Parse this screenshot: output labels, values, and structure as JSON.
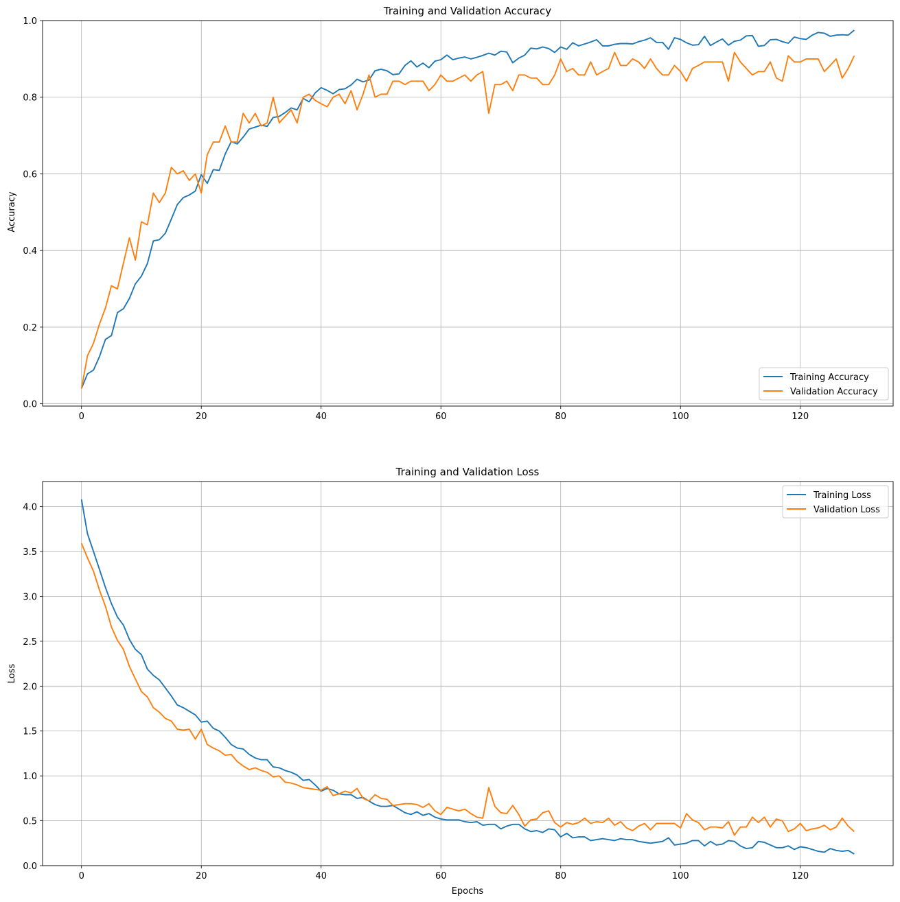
{
  "chart_data": [
    {
      "type": "line",
      "title": "Training and Validation Accuracy",
      "xlabel": "",
      "ylabel": "Accuracy",
      "xlim": [
        -6.5,
        135.5
      ],
      "ylim": [
        -0.006,
        1.0
      ],
      "xticks": [
        0,
        20,
        40,
        60,
        80,
        100,
        120
      ],
      "xtick_labels": [
        "0",
        "20",
        "40",
        "60",
        "80",
        "100",
        "120"
      ],
      "yticks": [
        0.0,
        0.2,
        0.4,
        0.6,
        0.8,
        1.0
      ],
      "ytick_labels": [
        "0.0",
        "0.2",
        "0.4",
        "0.6",
        "0.8",
        "1.0"
      ],
      "grid": true,
      "legend": "lower-right",
      "series": [
        {
          "name": "Training Accuracy",
          "color": "#1f77b4",
          "values": [
            0.04,
            0.078,
            0.088,
            0.123,
            0.168,
            0.178,
            0.238,
            0.248,
            0.275,
            0.313,
            0.333,
            0.366,
            0.425,
            0.428,
            0.445,
            0.482,
            0.52,
            0.538,
            0.545,
            0.555,
            0.598,
            0.575,
            0.611,
            0.609,
            0.652,
            0.684,
            0.678,
            0.696,
            0.717,
            0.722,
            0.727,
            0.724,
            0.747,
            0.75,
            0.76,
            0.772,
            0.767,
            0.797,
            0.788,
            0.811,
            0.825,
            0.818,
            0.809,
            0.82,
            0.822,
            0.832,
            0.847,
            0.84,
            0.845,
            0.869,
            0.873,
            0.869,
            0.859,
            0.861,
            0.883,
            0.895,
            0.879,
            0.889,
            0.877,
            0.894,
            0.898,
            0.91,
            0.898,
            0.902,
            0.905,
            0.9,
            0.904,
            0.909,
            0.915,
            0.91,
            0.92,
            0.918,
            0.89,
            0.902,
            0.91,
            0.928,
            0.926,
            0.931,
            0.927,
            0.917,
            0.931,
            0.925,
            0.942,
            0.934,
            0.939,
            0.944,
            0.95,
            0.934,
            0.934,
            0.938,
            0.94,
            0.94,
            0.939,
            0.945,
            0.949,
            0.955,
            0.943,
            0.943,
            0.925,
            0.955,
            0.951,
            0.942,
            0.936,
            0.937,
            0.959,
            0.935,
            0.944,
            0.952,
            0.936,
            0.946,
            0.949,
            0.96,
            0.961,
            0.933,
            0.935,
            0.95,
            0.951,
            0.945,
            0.941,
            0.957,
            0.953,
            0.951,
            0.962,
            0.969,
            0.967,
            0.959,
            0.962,
            0.963,
            0.962,
            0.975
          ]
        },
        {
          "name": "Validation Accuracy",
          "color": "#ff7f0e",
          "values": [
            0.04,
            0.125,
            0.158,
            0.208,
            0.25,
            0.308,
            0.3,
            0.367,
            0.433,
            0.375,
            0.475,
            0.467,
            0.55,
            0.525,
            0.55,
            0.617,
            0.6,
            0.608,
            0.583,
            0.6,
            0.55,
            0.65,
            0.683,
            0.683,
            0.725,
            0.683,
            0.683,
            0.758,
            0.733,
            0.758,
            0.725,
            0.733,
            0.8,
            0.733,
            0.75,
            0.767,
            0.733,
            0.8,
            0.808,
            0.792,
            0.783,
            0.775,
            0.8,
            0.808,
            0.783,
            0.817,
            0.767,
            0.808,
            0.858,
            0.8,
            0.808,
            0.808,
            0.842,
            0.842,
            0.833,
            0.842,
            0.842,
            0.842,
            0.817,
            0.833,
            0.858,
            0.842,
            0.842,
            0.85,
            0.858,
            0.842,
            0.858,
            0.867,
            0.758,
            0.833,
            0.833,
            0.842,
            0.817,
            0.858,
            0.858,
            0.85,
            0.85,
            0.833,
            0.833,
            0.858,
            0.9,
            0.867,
            0.875,
            0.858,
            0.858,
            0.892,
            0.858,
            0.867,
            0.875,
            0.917,
            0.883,
            0.883,
            0.9,
            0.892,
            0.875,
            0.9,
            0.875,
            0.858,
            0.858,
            0.883,
            0.867,
            0.842,
            0.875,
            0.883,
            0.892,
            0.892,
            0.892,
            0.892,
            0.842,
            0.917,
            0.892,
            0.875,
            0.858,
            0.867,
            0.867,
            0.892,
            0.85,
            0.842,
            0.908,
            0.892,
            0.892,
            0.9,
            0.9,
            0.9,
            0.867,
            0.883,
            0.9,
            0.85,
            0.875,
            0.908
          ]
        }
      ]
    },
    {
      "type": "line",
      "title": "Training and Validation Loss",
      "xlabel": "Epochs",
      "ylabel": "Loss",
      "xlim": [
        -6.5,
        135.5
      ],
      "ylim": [
        0.0,
        4.28
      ],
      "xticks": [
        0,
        20,
        40,
        60,
        80,
        100,
        120
      ],
      "xtick_labels": [
        "0",
        "20",
        "40",
        "60",
        "80",
        "100",
        "120"
      ],
      "yticks": [
        0.0,
        0.5,
        1.0,
        1.5,
        2.0,
        2.5,
        3.0,
        3.5,
        4.0
      ],
      "ytick_labels": [
        "0.0",
        "0.5",
        "1.0",
        "1.5",
        "2.0",
        "2.5",
        "3.0",
        "3.5",
        "4.0"
      ],
      "grid": true,
      "legend": "upper-right",
      "series": [
        {
          "name": "Training Loss",
          "color": "#1f77b4",
          "values": [
            4.08,
            3.7,
            3.5,
            3.3,
            3.1,
            2.92,
            2.77,
            2.68,
            2.52,
            2.41,
            2.35,
            2.19,
            2.12,
            2.07,
            1.98,
            1.89,
            1.79,
            1.76,
            1.72,
            1.68,
            1.6,
            1.61,
            1.53,
            1.5,
            1.43,
            1.35,
            1.31,
            1.3,
            1.24,
            1.2,
            1.18,
            1.18,
            1.1,
            1.09,
            1.06,
            1.04,
            1.01,
            0.95,
            0.96,
            0.9,
            0.83,
            0.86,
            0.84,
            0.8,
            0.79,
            0.79,
            0.75,
            0.76,
            0.72,
            0.68,
            0.66,
            0.66,
            0.67,
            0.63,
            0.59,
            0.57,
            0.6,
            0.56,
            0.58,
            0.54,
            0.52,
            0.51,
            0.51,
            0.51,
            0.49,
            0.48,
            0.49,
            0.45,
            0.46,
            0.46,
            0.41,
            0.44,
            0.46,
            0.46,
            0.41,
            0.38,
            0.39,
            0.37,
            0.41,
            0.4,
            0.32,
            0.36,
            0.31,
            0.32,
            0.32,
            0.28,
            0.29,
            0.3,
            0.29,
            0.28,
            0.3,
            0.29,
            0.29,
            0.27,
            0.26,
            0.25,
            0.26,
            0.27,
            0.31,
            0.23,
            0.24,
            0.25,
            0.28,
            0.28,
            0.22,
            0.27,
            0.23,
            0.24,
            0.28,
            0.27,
            0.22,
            0.19,
            0.2,
            0.27,
            0.26,
            0.23,
            0.2,
            0.2,
            0.22,
            0.18,
            0.21,
            0.2,
            0.18,
            0.16,
            0.15,
            0.19,
            0.17,
            0.16,
            0.17,
            0.13
          ]
        },
        {
          "name": "Validation Loss",
          "color": "#ff7f0e",
          "values": [
            3.59,
            3.43,
            3.28,
            3.07,
            2.89,
            2.66,
            2.51,
            2.41,
            2.22,
            2.08,
            1.94,
            1.88,
            1.76,
            1.71,
            1.64,
            1.61,
            1.52,
            1.51,
            1.52,
            1.41,
            1.52,
            1.35,
            1.31,
            1.28,
            1.23,
            1.24,
            1.16,
            1.11,
            1.07,
            1.09,
            1.06,
            1.04,
            0.99,
            1.0,
            0.93,
            0.92,
            0.9,
            0.87,
            0.86,
            0.85,
            0.84,
            0.88,
            0.78,
            0.8,
            0.83,
            0.81,
            0.86,
            0.75,
            0.72,
            0.79,
            0.75,
            0.74,
            0.67,
            0.68,
            0.69,
            0.69,
            0.68,
            0.65,
            0.69,
            0.61,
            0.57,
            0.65,
            0.63,
            0.61,
            0.63,
            0.58,
            0.54,
            0.53,
            0.87,
            0.66,
            0.59,
            0.58,
            0.67,
            0.57,
            0.44,
            0.51,
            0.52,
            0.59,
            0.61,
            0.48,
            0.43,
            0.48,
            0.46,
            0.48,
            0.53,
            0.47,
            0.49,
            0.48,
            0.53,
            0.45,
            0.49,
            0.42,
            0.39,
            0.44,
            0.47,
            0.4,
            0.47,
            0.47,
            0.47,
            0.47,
            0.42,
            0.58,
            0.51,
            0.48,
            0.4,
            0.43,
            0.43,
            0.42,
            0.49,
            0.34,
            0.43,
            0.43,
            0.54,
            0.48,
            0.54,
            0.43,
            0.52,
            0.5,
            0.38,
            0.41,
            0.47,
            0.39,
            0.41,
            0.42,
            0.45,
            0.4,
            0.43,
            0.53,
            0.44,
            0.38
          ]
        }
      ]
    }
  ]
}
